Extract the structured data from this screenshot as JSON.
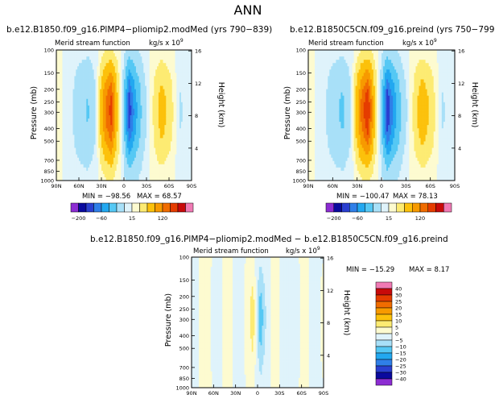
{
  "page": {
    "heading": "ANN"
  },
  "chart_data": [
    {
      "type": "heatmap",
      "title": "b.e12.B1850.f09_g16.PlMP4−pliomip2.modMed (yrs 790−839)",
      "subtitle": "Merid stream function",
      "units": "kg/s x 10",
      "units_exp": "9",
      "xlabel": "",
      "ylabel": "Pressure (mb)",
      "ylabel_right": "Height (km)",
      "x_ticks": [
        "90N",
        "60N",
        "30N",
        "0",
        "30S",
        "60S",
        "90S"
      ],
      "y_ticks": [
        "100",
        "150",
        "200",
        "250",
        "300",
        "400",
        "500",
        "700",
        "850",
        "1000"
      ],
      "height_ticks": [
        "16",
        "12",
        "8",
        "4"
      ],
      "min_label": "MIN = −98.56",
      "max_label": "MAX = 68.57",
      "colorbar_labels": [
        "−200",
        "−60",
        "15",
        "120"
      ],
      "bands": [
        {
          "lat": 90,
          "value": 3,
          "vmin": 1
        },
        {
          "lat": 68,
          "value": -5,
          "vmin": -2
        },
        {
          "lat": 48,
          "value": -22,
          "vmin": -3
        },
        {
          "lat": 36,
          "value": -3,
          "vmin": -1
        },
        {
          "lat": 25,
          "value": 45,
          "vmin": 4
        },
        {
          "lat": 17,
          "value": 66,
          "vmin": 6
        },
        {
          "lat": 9,
          "value": 18,
          "vmin": 2
        },
        {
          "lat": 1,
          "value": -10,
          "vmin": -2
        },
        {
          "lat": -7,
          "value": -92,
          "vmin": -10
        },
        {
          "lat": -16,
          "value": -45,
          "vmin": -6
        },
        {
          "lat": -26,
          "value": -10,
          "vmin": -2
        },
        {
          "lat": -38,
          "value": 4,
          "vmin": 1
        },
        {
          "lat": -50,
          "value": 22,
          "vmin": 2
        },
        {
          "lat": -62,
          "value": 9,
          "vmin": 1
        },
        {
          "lat": -74,
          "value": -6,
          "vmin": -1
        },
        {
          "lat": -90,
          "value": -2,
          "vmin": 0
        }
      ]
    },
    {
      "type": "heatmap",
      "title": "b.e12.B1850C5CN.f09_g16.preind (yrs 750−799)",
      "subtitle": "Merid stream function",
      "units": "kg/s x 10",
      "units_exp": "9",
      "xlabel": "",
      "ylabel": "Pressure (mb)",
      "ylabel_right": "Height (km)",
      "x_ticks": [
        "90N",
        "60N",
        "30N",
        "0",
        "30S",
        "60S",
        "90S"
      ],
      "y_ticks": [
        "100",
        "150",
        "200",
        "250",
        "300",
        "400",
        "500",
        "700",
        "850",
        "1000"
      ],
      "height_ticks": [
        "16",
        "12",
        "8",
        "4"
      ],
      "min_label": "MIN = −100.47",
      "max_label": "MAX = 78.13",
      "colorbar_labels": [
        "−200",
        "−60",
        "15",
        "120"
      ],
      "bands": [
        {
          "lat": 90,
          "value": 3,
          "vmin": 1
        },
        {
          "lat": 68,
          "value": -5,
          "vmin": -2
        },
        {
          "lat": 48,
          "value": -24,
          "vmin": -3
        },
        {
          "lat": 36,
          "value": -3,
          "vmin": -1
        },
        {
          "lat": 25,
          "value": 48,
          "vmin": 4
        },
        {
          "lat": 17,
          "value": 76,
          "vmin": 6
        },
        {
          "lat": 9,
          "value": 20,
          "vmin": 2
        },
        {
          "lat": 1,
          "value": -10,
          "vmin": -2
        },
        {
          "lat": -7,
          "value": -98,
          "vmin": -10
        },
        {
          "lat": -16,
          "value": -50,
          "vmin": -6
        },
        {
          "lat": -26,
          "value": -12,
          "vmin": -2
        },
        {
          "lat": -38,
          "value": 4,
          "vmin": 1
        },
        {
          "lat": -50,
          "value": 26,
          "vmin": 2
        },
        {
          "lat": -62,
          "value": 10,
          "vmin": 1
        },
        {
          "lat": -74,
          "value": -6,
          "vmin": -1
        },
        {
          "lat": -90,
          "value": -2,
          "vmin": 0
        }
      ]
    },
    {
      "type": "heatmap",
      "title": "b.e12.B1850.f09_g16.PlMP4−pliomip2.modMed − b.e12.B1850C5CN.f09_g16.preind",
      "subtitle": "Merid stream function",
      "units": "kg/s x 10",
      "units_exp": "9",
      "xlabel": "",
      "ylabel": "Pressure (mb)",
      "ylabel_right": "Height (km)",
      "x_ticks": [
        "90N",
        "60N",
        "30N",
        "0",
        "30S",
        "60S",
        "90S"
      ],
      "y_ticks": [
        "100",
        "150",
        "200",
        "250",
        "300",
        "400",
        "500",
        "700",
        "850",
        "1000"
      ],
      "height_ticks": [
        "16",
        "12",
        "8",
        "4"
      ],
      "min_label": "MIN = −15.29",
      "max_label": "MAX = 8.17",
      "colorbar_labels": [
        "40",
        "30",
        "25",
        "20",
        "15",
        "10",
        "5",
        "0",
        "−5",
        "−10",
        "−15",
        "−20",
        "−25",
        "−30",
        "−40"
      ],
      "bands": [
        {
          "lat": 90,
          "value": -2,
          "vmin": -1
        },
        {
          "lat": 70,
          "value": 2,
          "vmin": 1
        },
        {
          "lat": 55,
          "value": -3,
          "vmin": -1
        },
        {
          "lat": 40,
          "value": 3,
          "vmin": 1
        },
        {
          "lat": 27,
          "value": -3,
          "vmin": -1
        },
        {
          "lat": 16,
          "value": 1,
          "vmin": 0
        },
        {
          "lat": 6,
          "value": 8,
          "vmin": 2
        },
        {
          "lat": 1,
          "value": -4,
          "vmin": -2
        },
        {
          "lat": -4,
          "value": -14,
          "vmin": -4
        },
        {
          "lat": -12,
          "value": -4,
          "vmin": -1
        },
        {
          "lat": -22,
          "value": 3,
          "vmin": 1
        },
        {
          "lat": -36,
          "value": -3,
          "vmin": -1
        },
        {
          "lat": -50,
          "value": -5,
          "vmin": -1
        },
        {
          "lat": -63,
          "value": 3,
          "vmin": 1
        },
        {
          "lat": -76,
          "value": -2,
          "vmin": -1
        },
        {
          "lat": -90,
          "value": 1,
          "vmin": 0
        }
      ]
    }
  ],
  "palette_main": [
    "#8c2cd2",
    "#0a0a9e",
    "#2a3fd0",
    "#2f7fe8",
    "#22a8f0",
    "#55c8f4",
    "#a8e0f8",
    "#dff3fb",
    "#fdfbd0",
    "#fdeb72",
    "#fcc10b",
    "#f79a00",
    "#f06c00",
    "#e53c00",
    "#c80a0a",
    "#f07ab4"
  ],
  "palette_diff": [
    "#f07ab4",
    "#c80a0a",
    "#e53c00",
    "#f06c00",
    "#f79a00",
    "#fcc10b",
    "#fdeb72",
    "#fdfbd0",
    "#dff3fb",
    "#a8e0f8",
    "#55c8f4",
    "#22a8f0",
    "#2f7fe8",
    "#2a3fd0",
    "#0a0a9e",
    "#8c2cd2"
  ]
}
